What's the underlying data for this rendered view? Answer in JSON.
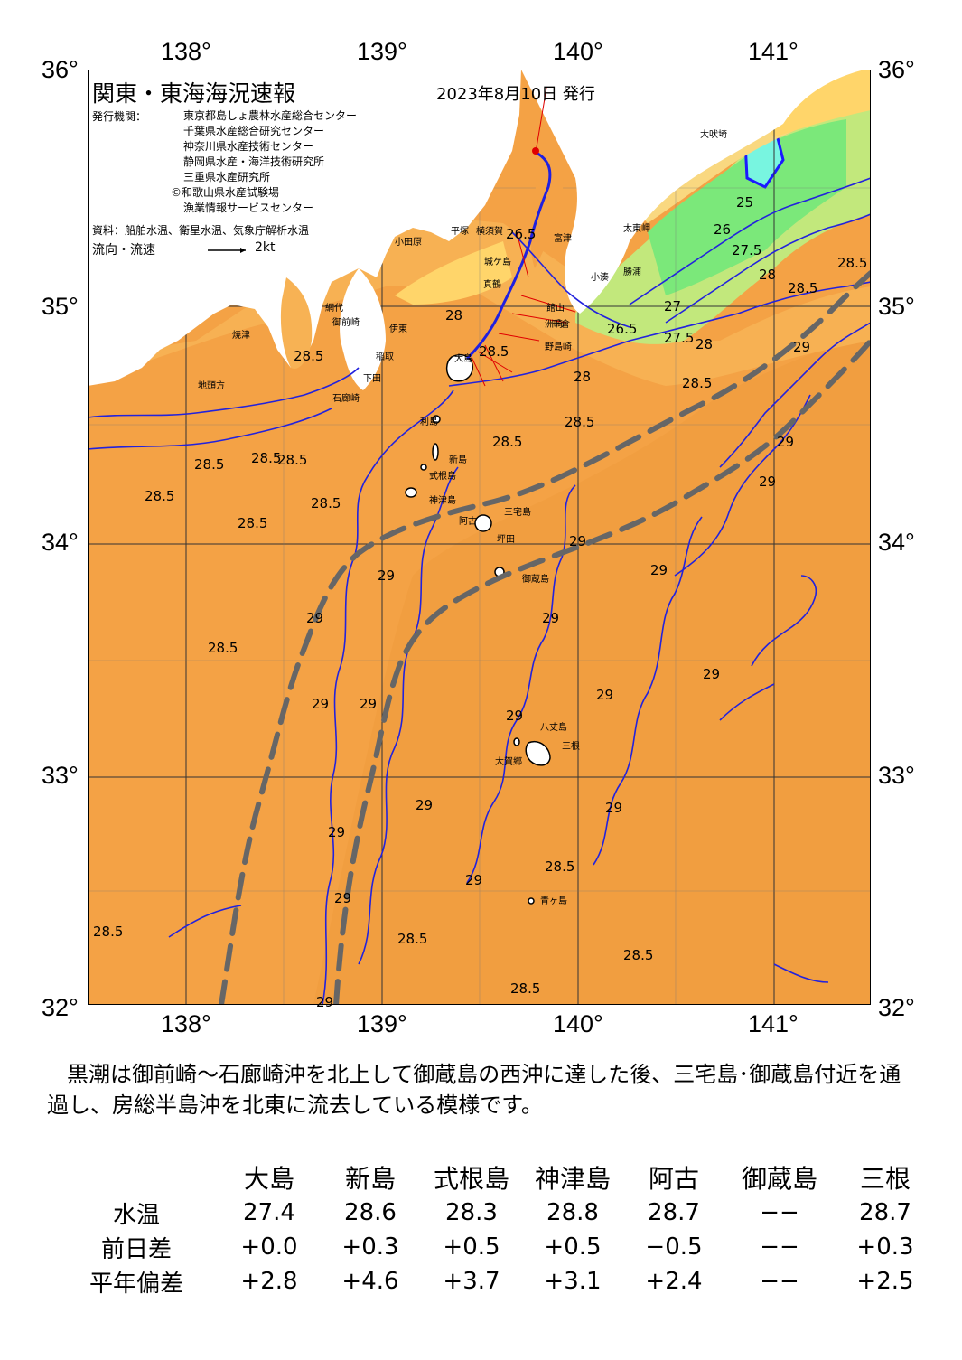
{
  "map": {
    "title": "関東・東海海況速報",
    "issue_date": "2023年8月10日 発行",
    "issuer_label": "発行機関：",
    "issuers": [
      "東京都島しょ農林水産総合センター",
      "千葉県水産総合研究センター",
      "神奈川県水産技術センター",
      "静岡県水産・海洋技術研究所",
      "三重県水産研究所",
      "©和歌山県水産試験場",
      "漁業情報サービスセンター"
    ],
    "source": "資料：船舶水温、衛星水温、気象庁解析水温",
    "flow_legend": "流向・流速",
    "flow_scale": "2kt",
    "lon_ticks": [
      "138°",
      "139°",
      "140°",
      "141°"
    ],
    "lat_ticks": [
      "36°",
      "35°",
      "34°",
      "33°",
      "32°"
    ],
    "islands": [
      "利島",
      "新島",
      "式根島",
      "神津島",
      "三宅島",
      "阿古",
      "坪田",
      "御蔵島",
      "八丈島",
      "三根",
      "大賀郷",
      "青ヶ島",
      "大島"
    ],
    "places": [
      "大吠埼",
      "太東岬",
      "小湊",
      "野島崎",
      "勝浦",
      "富津",
      "洲崎",
      "館山",
      "千倉",
      "横須賀",
      "平塚",
      "小田原",
      "城ケ島",
      "真鶴",
      "伊東",
      "稲取",
      "下田",
      "石廊崎",
      "御前崎",
      "焼津",
      "地頭方",
      "網代"
    ],
    "contours": [
      "28.5",
      "28.5",
      "28.5",
      "28.5",
      "28.5",
      "28.5",
      "28.5",
      "28.5",
      "28.5",
      "28.5",
      "28.5",
      "28.5",
      "28.5",
      "28.5",
      "28.5",
      "28.5",
      "28.5",
      "28.5",
      "29",
      "29",
      "29",
      "29",
      "29",
      "29",
      "29",
      "29",
      "29",
      "29",
      "29",
      "29",
      "29",
      "29",
      "29",
      "29",
      "29",
      "29",
      "28",
      "28",
      "28",
      "28",
      "27.5",
      "27.5",
      "27",
      "26.5",
      "26.5",
      "26",
      "25",
      "29",
      "28.5"
    ],
    "colors": {
      "sea_warm": "#F4A245",
      "sea_warmest": "#EE9A3C",
      "sea_cool": "#F9BE5A",
      "sea_27": "#FFD56A",
      "sea_26": "#C2E87C",
      "sea_25": "#7BE87A",
      "sea_24": "#78F5E0",
      "land": "#FFFFFF",
      "contour": "#2222DD",
      "kuroshio": "#666666",
      "grid": "#333333"
    }
  },
  "summary": "黒潮は御前崎～石廊崎沖を北上して御蔵島の西沖に達した後、三宅島･御蔵島付近を通過し、房総半島沖を北東に流去している模様です。",
  "table": {
    "stations": [
      "大島",
      "新島",
      "式根島",
      "神津島",
      "阿古",
      "御蔵島",
      "三根"
    ],
    "rows": [
      {
        "label": "水温",
        "values": [
          "27.4",
          "28.6",
          "28.3",
          "28.8",
          "28.7",
          "−−",
          "28.7"
        ]
      },
      {
        "label": "前日差",
        "values": [
          "+0.0",
          "+0.3",
          "+0.5",
          "+0.5",
          "−0.5",
          "−−",
          "+0.3"
        ]
      },
      {
        "label": "平年偏差",
        "values": [
          "+2.8",
          "+4.6",
          "+3.7",
          "+3.1",
          "+2.4",
          "−−",
          "+2.5"
        ]
      }
    ]
  }
}
